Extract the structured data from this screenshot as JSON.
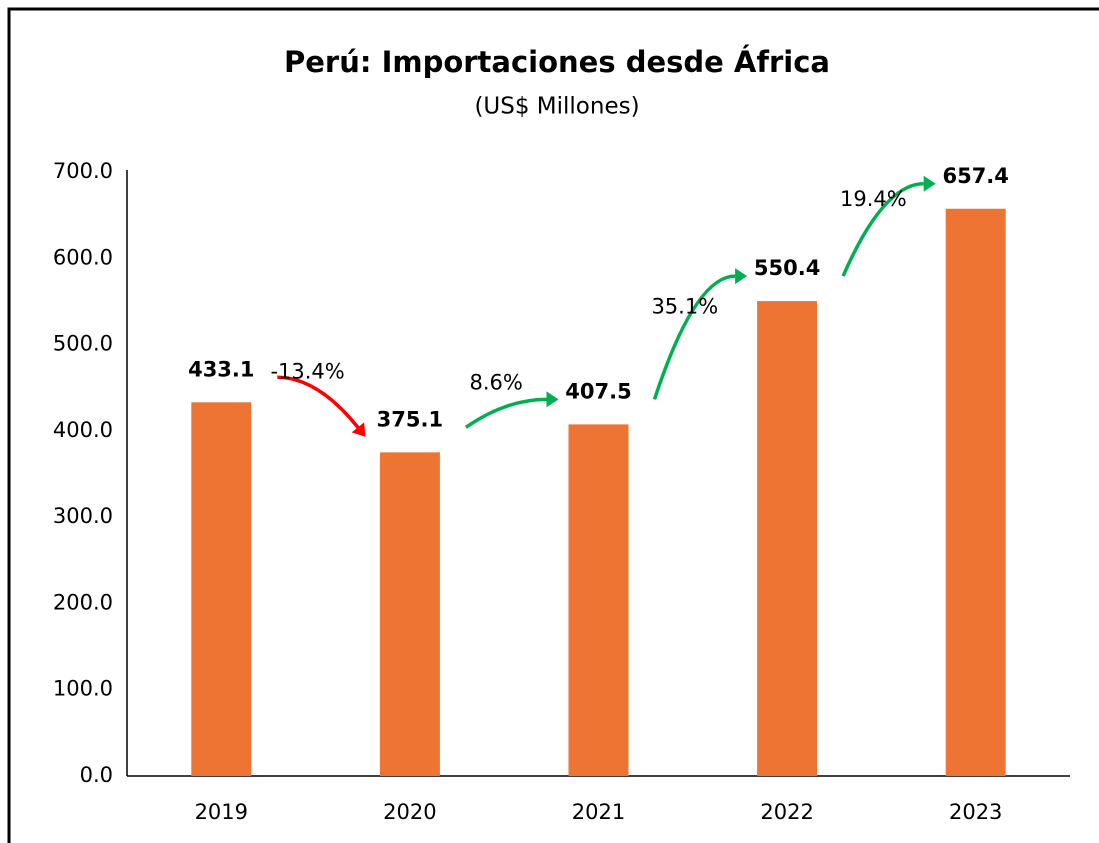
{
  "chart_data": {
    "type": "bar",
    "title": "Perú: Importaciones desde África",
    "subtitle": "(US$ Millones)",
    "categories": [
      "2019",
      "2020",
      "2021",
      "2022",
      "2023"
    ],
    "values": [
      433.1,
      375.1,
      407.5,
      550.4,
      657.4
    ],
    "color": "#ed7433",
    "ylim": [
      0,
      700
    ],
    "yticks": [
      {
        "value": 0,
        "label": "0.0"
      },
      {
        "value": 100,
        "label": "100.0"
      },
      {
        "value": 200,
        "label": "200.0"
      },
      {
        "value": 300,
        "label": "300.0"
      },
      {
        "value": 400,
        "label": "400.0"
      },
      {
        "value": 500,
        "label": "500.0"
      },
      {
        "value": 600,
        "label": "600.0"
      },
      {
        "value": 700,
        "label": "700.0"
      }
    ],
    "grid": false,
    "annotations": [
      {
        "text": "-13.4%",
        "color": "#ff0000"
      },
      {
        "text": "8.6%",
        "color": "#00b050"
      },
      {
        "text": "35.1%",
        "color": "#00b050"
      },
      {
        "text": "19.4%",
        "color": "#00b050"
      }
    ]
  }
}
